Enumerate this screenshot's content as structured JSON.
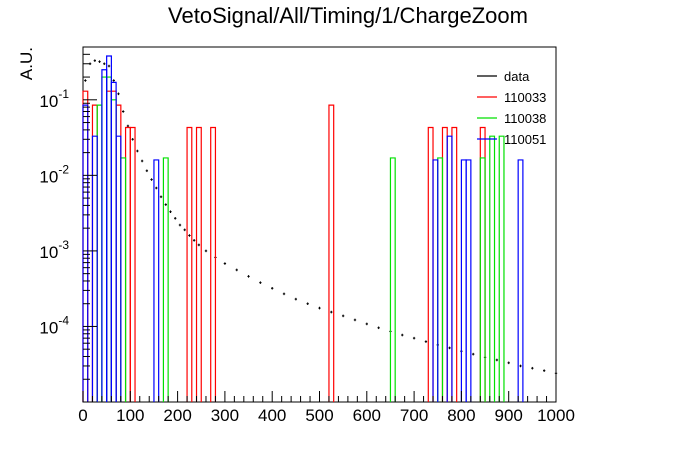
{
  "chart_data": {
    "type": "histogram",
    "title": "VetoSignal/All/Timing/1/ChargeZoom",
    "xlabel": "",
    "ylabel": "A.U.",
    "xlim": [
      0,
      1000
    ],
    "ylim": [
      1e-05,
      0.5
    ],
    "yscale": "log",
    "x_ticks": [
      "0",
      "100",
      "200",
      "300",
      "400",
      "500",
      "600",
      "700",
      "800",
      "900",
      "1000"
    ],
    "y_ticks": [
      {
        "base": "10",
        "exp": "-4",
        "value": 0.0001
      },
      {
        "base": "10",
        "exp": "-3",
        "value": 0.001
      },
      {
        "base": "10",
        "exp": "-2",
        "value": 0.01
      },
      {
        "base": "10",
        "exp": "-1",
        "value": 0.1
      }
    ],
    "legend_position": "top-right",
    "series": [
      {
        "name": "data",
        "color": "#000000",
        "style": "errorbar-steps",
        "bin_width": 5,
        "points": [
          [
            5,
            0.18
          ],
          [
            15,
            0.3
          ],
          [
            25,
            0.33
          ],
          [
            35,
            0.32
          ],
          [
            45,
            0.3
          ],
          [
            55,
            0.28
          ],
          [
            65,
            0.18
          ],
          [
            75,
            0.12
          ],
          [
            85,
            0.07
          ],
          [
            95,
            0.045
          ],
          [
            105,
            0.03
          ],
          [
            115,
            0.021
          ],
          [
            125,
            0.0155
          ],
          [
            135,
            0.0115
          ],
          [
            145,
            0.0088
          ],
          [
            155,
            0.0068
          ],
          [
            165,
            0.0052
          ],
          [
            175,
            0.0041
          ],
          [
            185,
            0.0033
          ],
          [
            195,
            0.0027
          ],
          [
            205,
            0.0022
          ],
          [
            215,
            0.0019
          ],
          [
            225,
            0.0016
          ],
          [
            235,
            0.00138
          ],
          [
            245,
            0.0012
          ],
          [
            260,
            0.001
          ],
          [
            280,
            0.00082
          ],
          [
            300,
            0.00068
          ],
          [
            325,
            0.00056
          ],
          [
            350,
            0.00046
          ],
          [
            375,
            0.00038
          ],
          [
            400,
            0.00032
          ],
          [
            425,
            0.00027
          ],
          [
            450,
            0.00023
          ],
          [
            475,
            0.0002
          ],
          [
            500,
            0.000175
          ],
          [
            525,
            0.000155
          ],
          [
            550,
            0.000138
          ],
          [
            575,
            0.000122
          ],
          [
            600,
            0.000108
          ],
          [
            625,
            9.6e-05
          ],
          [
            650,
            8.6e-05
          ],
          [
            675,
            7.7e-05
          ],
          [
            700,
            7e-05
          ],
          [
            725,
            6.3e-05
          ],
          [
            750,
            5.7e-05
          ],
          [
            775,
            5.2e-05
          ],
          [
            800,
            4.7e-05
          ],
          [
            825,
            4.3e-05
          ],
          [
            850,
            3.9e-05
          ],
          [
            875,
            3.6e-05
          ],
          [
            900,
            3.3e-05
          ],
          [
            925,
            3e-05
          ],
          [
            950,
            2.8e-05
          ],
          [
            975,
            2.6e-05
          ],
          [
            1000,
            2.4e-05
          ]
        ]
      },
      {
        "name": "110033",
        "color": "#ff0000",
        "style": "steps",
        "bins": [
          [
            0,
            10,
            0.13
          ],
          [
            20,
            30,
            0.085
          ],
          [
            50,
            60,
            0.13
          ],
          [
            60,
            70,
            0.13
          ],
          [
            70,
            80,
            0.085
          ],
          [
            90,
            100,
            0.043
          ],
          [
            100,
            110,
            0.043
          ],
          [
            220,
            230,
            0.043
          ],
          [
            240,
            250,
            0.043
          ],
          [
            270,
            280,
            0.043
          ],
          [
            520,
            530,
            0.085
          ],
          [
            730,
            740,
            0.043
          ],
          [
            760,
            770,
            0.043
          ],
          [
            780,
            790,
            0.043
          ],
          [
            840,
            850,
            0.043
          ]
        ]
      },
      {
        "name": "110038",
        "color": "#00e000",
        "style": "steps",
        "bins": [
          [
            30,
            40,
            0.085
          ],
          [
            40,
            50,
            0.2
          ],
          [
            50,
            60,
            0.2
          ],
          [
            60,
            70,
            0.1
          ],
          [
            80,
            90,
            0.017
          ],
          [
            170,
            180,
            0.017
          ],
          [
            650,
            660,
            0.017
          ],
          [
            750,
            760,
            0.017
          ],
          [
            840,
            850,
            0.017
          ],
          [
            860,
            870,
            0.033
          ],
          [
            880,
            890,
            0.033
          ]
        ]
      },
      {
        "name": "110051",
        "color": "#0000ff",
        "style": "steps",
        "bins": [
          [
            0,
            10,
            0.085
          ],
          [
            20,
            30,
            0.033
          ],
          [
            40,
            50,
            0.25
          ],
          [
            50,
            60,
            0.38
          ],
          [
            60,
            70,
            0.17
          ],
          [
            70,
            80,
            0.033
          ],
          [
            150,
            160,
            0.016
          ],
          [
            740,
            750,
            0.016
          ],
          [
            770,
            780,
            0.033
          ],
          [
            800,
            810,
            0.016
          ],
          [
            810,
            820,
            0.016
          ],
          [
            920,
            930,
            0.016
          ]
        ]
      }
    ]
  }
}
